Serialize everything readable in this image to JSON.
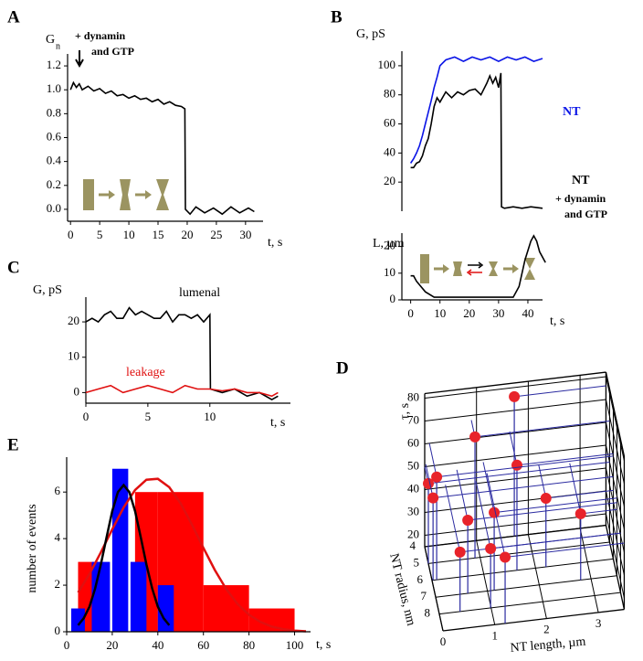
{
  "chart_data": [
    {
      "type": "line",
      "label": "A",
      "ylabel": "G",
      "ylabel_sub": "n",
      "xlabel": "t, s",
      "annotation": [
        "+ dynamin",
        "and GTP"
      ],
      "xlim": [
        -0.5,
        33
      ],
      "xticks": [
        0,
        5,
        10,
        15,
        20,
        25,
        30
      ],
      "ylim": [
        -0.1,
        1.3
      ],
      "yticks": [
        {
          "value": 0,
          "label": "0.0"
        },
        {
          "value": 0.2,
          "label": "0.2"
        },
        {
          "value": 0.4,
          "label": "0.4"
        },
        {
          "value": 0.6,
          "label": "0.6"
        },
        {
          "value": 0.8,
          "label": "0.8"
        },
        {
          "value": 1,
          "label": "1.0"
        },
        {
          "value": 1.2,
          "label": "1.2"
        }
      ],
      "series": [
        {
          "color": "#000000",
          "x": [
            0,
            0.5,
            1,
            1.5,
            2,
            3,
            4,
            5,
            6,
            7,
            8,
            9,
            10,
            11,
            12,
            13,
            14,
            15,
            16,
            17,
            18,
            19,
            19.6,
            19.7,
            20.5,
            21.5,
            23,
            24.5,
            26,
            27.5,
            29,
            30.5,
            31.5
          ],
          "values": [
            1.0,
            1.06,
            1.02,
            1.05,
            1.0,
            1.03,
            0.99,
            1.01,
            0.97,
            0.99,
            0.95,
            0.96,
            0.93,
            0.95,
            0.92,
            0.93,
            0.9,
            0.92,
            0.88,
            0.9,
            0.87,
            0.86,
            0.84,
            0.0,
            -0.04,
            0.02,
            -0.03,
            0.01,
            -0.04,
            0.02,
            -0.03,
            0.01,
            -0.02
          ]
        }
      ]
    },
    {
      "type": "line",
      "label": "B",
      "ylabel": "G, pS",
      "xlim": [
        -3,
        45
      ],
      "ylim": [
        0,
        110
      ],
      "yticks": [
        20,
        40,
        60,
        80,
        100
      ],
      "series": [
        {
          "name": "NT",
          "color": "#0a14e6",
          "x": [
            0,
            1,
            2,
            3,
            4,
            5,
            6,
            7,
            8,
            9,
            10,
            12,
            15,
            18,
            21,
            24,
            27,
            30,
            33,
            36,
            39,
            42,
            45
          ],
          "values": [
            33,
            36,
            40,
            45,
            52,
            60,
            68,
            76,
            85,
            92,
            100,
            104,
            106,
            103,
            106,
            104,
            106,
            103,
            106,
            104,
            106,
            103,
            105
          ]
        },
        {
          "name": "NT",
          "note": [
            "+ dynamin",
            "and GTP"
          ],
          "color": "#000000",
          "x": [
            0,
            1,
            2,
            3,
            4,
            5,
            6,
            7,
            8,
            9,
            10,
            12,
            14,
            16,
            18,
            20,
            22,
            24,
            26,
            27,
            28,
            29,
            30,
            30.8,
            31,
            32,
            35,
            38,
            41,
            45
          ],
          "values": [
            30,
            30,
            33,
            34,
            38,
            45,
            50,
            60,
            72,
            78,
            75,
            82,
            78,
            82,
            80,
            83,
            84,
            80,
            88,
            93,
            88,
            92,
            85,
            95,
            3,
            2,
            3,
            2,
            3,
            2
          ]
        }
      ]
    },
    {
      "type": "line",
      "ylabel": "L, µm",
      "xlabel": "t, s",
      "xlim": [
        -3,
        45
      ],
      "xticks": [
        0,
        10,
        20,
        30,
        40
      ],
      "ylim": [
        0,
        25
      ],
      "yticks": [
        0,
        10,
        20
      ],
      "series": [
        {
          "color": "#000000",
          "x": [
            0,
            1,
            2,
            5,
            8,
            12,
            20,
            30,
            35,
            37,
            39,
            41,
            42,
            43,
            44,
            46
          ],
          "values": [
            9,
            9,
            7,
            3,
            1,
            1,
            1,
            1,
            1,
            5,
            15,
            22,
            24,
            22,
            18,
            14
          ]
        }
      ]
    },
    {
      "type": "line",
      "label": "C",
      "ylabel": "G, pS",
      "xlabel": "t, s",
      "xlim": [
        0,
        16.5
      ],
      "xticks": [
        0,
        5,
        10
      ],
      "ylim": [
        -3,
        27
      ],
      "yticks": [
        0,
        10,
        20
      ],
      "series": [
        {
          "name": "lumenal",
          "color": "#000000",
          "x": [
            0,
            0.5,
            1,
            1.5,
            2,
            2.5,
            3,
            3.5,
            4,
            4.5,
            5,
            5.5,
            6,
            6.5,
            7,
            7.5,
            8,
            8.5,
            9,
            9.5,
            10,
            10.05,
            11,
            12,
            13,
            14,
            15,
            15.5
          ],
          "values": [
            20,
            21,
            20,
            22,
            23,
            21,
            21,
            24,
            22,
            23,
            22,
            21,
            21,
            23,
            20,
            22,
            22,
            21,
            22,
            20,
            22,
            1,
            0,
            1,
            -1,
            0,
            -2,
            -1
          ]
        },
        {
          "name": "leakage",
          "color": "#e01010",
          "x": [
            0,
            1,
            2,
            3,
            4,
            5,
            6,
            7,
            8,
            9,
            10,
            11,
            12,
            13,
            14,
            15,
            15.5
          ],
          "values": [
            0,
            1,
            2,
            0,
            1,
            2,
            1,
            0,
            2,
            1,
            1,
            0.5,
            1,
            0,
            0,
            -1,
            0
          ]
        }
      ]
    },
    {
      "type": "scatter3d",
      "label": "D",
      "xlabel": "NT length, µm",
      "ylabel": "NT radius, nm",
      "zlabel": "τ, s",
      "xlim": [
        0,
        3.5
      ],
      "xticks": [
        0,
        1,
        2,
        3
      ],
      "ylim": [
        4,
        9
      ],
      "yticks": [
        4,
        5,
        6,
        7,
        8
      ],
      "zlim": [
        15,
        82
      ],
      "zticks": [
        20,
        30,
        40,
        50,
        60,
        70,
        80
      ],
      "series": [
        {
          "color": "#e8232a",
          "x": [
            1.73,
            0.9,
            1.64,
            0,
            0.09,
            0.02,
            0.62,
            1.13,
            2.2,
            2.8,
            0.4,
            0.99,
            1.2
          ],
          "y": [
            4,
            5,
            6,
            5,
            6,
            6,
            7,
            7,
            6,
            7,
            8,
            8,
            9
          ],
          "values": [
            76,
            68,
            61,
            50,
            60,
            51,
            47,
            49,
            45,
            44,
            41,
            41,
            44
          ]
        }
      ]
    },
    {
      "type": "histogram",
      "label": "E",
      "ylabel": "number of events",
      "xlabel": "t, s",
      "xlim": [
        0,
        107
      ],
      "xticks": [
        0,
        20,
        40,
        60,
        80,
        100
      ],
      "ylim": [
        0,
        7.5
      ],
      "yticks": [
        0,
        2,
        4,
        6
      ],
      "series": [
        {
          "color": "#ff0000",
          "left": [
            5,
            30,
            40,
            60,
            80
          ],
          "right": [
            15,
            40,
            60,
            80,
            100
          ],
          "values": [
            3,
            6,
            6,
            2,
            1
          ]
        },
        {
          "color": "#0000ff",
          "left": [
            2,
            11,
            20,
            28,
            40
          ],
          "right": [
            8,
            19,
            27,
            35,
            47
          ],
          "values": [
            1,
            3,
            7,
            3,
            2
          ]
        }
      ],
      "fits": [
        {
          "color": "#e01010",
          "x": [
            5,
            10,
            15,
            20,
            25,
            30,
            35,
            40,
            45,
            50,
            55,
            60,
            65,
            70,
            75,
            80,
            85,
            90,
            95,
            100,
            105
          ],
          "values": [
            1.69,
            2.48,
            3.41,
            4.4,
            5.34,
            6.09,
            6.53,
            6.57,
            6.21,
            5.51,
            4.6,
            3.6,
            2.65,
            1.83,
            1.19,
            0.73,
            0.42,
            0.22,
            0.11,
            0.05,
            0.02
          ]
        },
        {
          "color": "#000000",
          "x": [
            5,
            7.5,
            10,
            12.5,
            15,
            17.5,
            20,
            22.5,
            25,
            27.5,
            30,
            32.5,
            35,
            37.5,
            40,
            42.5,
            45
          ],
          "values": [
            0.28,
            0.58,
            1.08,
            1.86,
            2.89,
            4.06,
            5.18,
            6.0,
            6.3,
            6.0,
            5.18,
            4.06,
            2.89,
            1.86,
            1.08,
            0.58,
            0.28
          ]
        }
      ]
    }
  ]
}
